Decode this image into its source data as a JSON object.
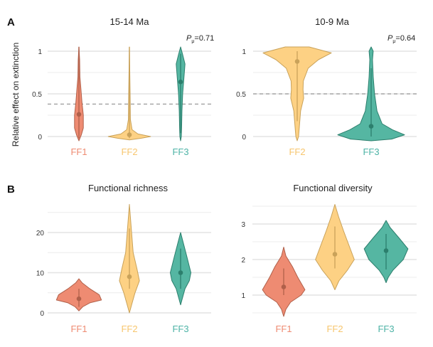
{
  "colors": {
    "FF1": "#EE8B72",
    "FF2": "#FDD184",
    "FF3": "#55B6A2",
    "FF1_stroke": "#B0604A",
    "FF2_stroke": "#C9A25A",
    "FF3_stroke": "#2C7F6D",
    "FF1_label": "#EE8B72",
    "FF2_label": "#F7C66E",
    "FF3_label": "#4DB3A6"
  },
  "panel_labels": {
    "A": "A",
    "B": "B"
  },
  "shared_ylabel": "Relative effect on extinction",
  "chart_data": [
    {
      "type": "violin",
      "panel": "A",
      "title": "15-14 Ma",
      "annotation": "P",
      "annotation_sub": "μ",
      "annotation_value": "=0.71",
      "ylim": [
        -0.05,
        1.05
      ],
      "yticks": [
        0,
        0.5,
        1
      ],
      "ytick_labels": [
        "0",
        "0.5",
        "1"
      ],
      "minor_grid": [
        0.25,
        0.75
      ],
      "reference_line": 0.38,
      "categories": [
        "FF1",
        "FF2",
        "FF3"
      ],
      "series": [
        {
          "name": "FF1",
          "median": 0.26,
          "interval": [
            -0.02,
            1.05
          ],
          "density": [
            [
              1.05,
              0
            ],
            [
              0.9,
              0.02
            ],
            [
              0.7,
              0.03
            ],
            [
              0.6,
              0.05
            ],
            [
              0.4,
              0.09
            ],
            [
              0.25,
              0.13
            ],
            [
              0.1,
              0.13
            ],
            [
              0.02,
              0.07
            ],
            [
              -0.05,
              0
            ]
          ]
        },
        {
          "name": "FF2",
          "median": 0.02,
          "interval": [
            -0.02,
            1.05
          ],
          "density": [
            [
              1.05,
              0
            ],
            [
              0.5,
              0.02
            ],
            [
              0.2,
              0.03
            ],
            [
              0.08,
              0.08
            ],
            [
              0.03,
              0.25
            ],
            [
              0.0,
              0.62
            ],
            [
              -0.02,
              0.35
            ],
            [
              -0.04,
              0
            ]
          ]
        },
        {
          "name": "FF3",
          "median": 0.64,
          "interval": [
            0.04,
            0.97
          ],
          "density": [
            [
              1.05,
              0
            ],
            [
              0.96,
              0.06
            ],
            [
              0.85,
              0.13
            ],
            [
              0.7,
              0.1
            ],
            [
              0.5,
              0.06
            ],
            [
              0.3,
              0.04
            ],
            [
              0.1,
              0.03
            ],
            [
              0.0,
              0.02
            ],
            [
              -0.05,
              0
            ]
          ]
        }
      ]
    },
    {
      "type": "violin",
      "panel": "A",
      "title": "10-9 Ma",
      "annotation": "P",
      "annotation_sub": "μ",
      "annotation_value": "=0.64",
      "ylim": [
        -0.05,
        1.05
      ],
      "yticks": [
        0,
        0.5,
        1
      ],
      "ytick_labels": [
        "0",
        "0.5",
        "1"
      ],
      "minor_grid": [
        0.25,
        0.75
      ],
      "reference_line": 0.5,
      "categories": [
        "FF2",
        "FF3"
      ],
      "series": [
        {
          "name": "FF2",
          "median": 0.88,
          "interval": [
            0.18,
            1.0
          ],
          "density": [
            [
              1.05,
              0.35
            ],
            [
              0.98,
              1.0
            ],
            [
              0.9,
              0.62
            ],
            [
              0.8,
              0.32
            ],
            [
              0.65,
              0.18
            ],
            [
              0.55,
              0.17
            ],
            [
              0.45,
              0.19
            ],
            [
              0.3,
              0.1
            ],
            [
              0.1,
              0.06
            ],
            [
              0.0,
              0.04
            ],
            [
              -0.05,
              0
            ]
          ]
        },
        {
          "name": "FF3",
          "median": 0.12,
          "interval": [
            0.0,
            0.8
          ],
          "density": [
            [
              1.05,
              0
            ],
            [
              1.0,
              0.06
            ],
            [
              0.9,
              0.04
            ],
            [
              0.7,
              0.06
            ],
            [
              0.5,
              0.1
            ],
            [
              0.3,
              0.17
            ],
            [
              0.15,
              0.32
            ],
            [
              0.08,
              0.62
            ],
            [
              0.02,
              0.98
            ],
            [
              -0.03,
              0.6
            ],
            [
              -0.05,
              0
            ]
          ]
        }
      ]
    },
    {
      "type": "violin",
      "panel": "B",
      "title": "Functional richness",
      "ylim": [
        -1,
        28
      ],
      "yticks": [
        0,
        10,
        20
      ],
      "ytick_labels": [
        "0",
        "10",
        "20"
      ],
      "minor_grid": [
        5,
        15,
        25
      ],
      "categories": [
        "FF1",
        "FF2",
        "FF3"
      ],
      "series": [
        {
          "name": "FF1",
          "median": 3.5,
          "interval": [
            1.5,
            6
          ],
          "density": [
            [
              8.5,
              0
            ],
            [
              7.5,
              0.1
            ],
            [
              6,
              0.35
            ],
            [
              4.5,
              0.65
            ],
            [
              3.2,
              0.72
            ],
            [
              2.5,
              0.35
            ],
            [
              1.5,
              0.12
            ],
            [
              0.5,
              0
            ]
          ]
        },
        {
          "name": "FF2",
          "median": 9,
          "interval": [
            6,
            21
          ],
          "density": [
            [
              27,
              0
            ],
            [
              20,
              0.07
            ],
            [
              15,
              0.12
            ],
            [
              11,
              0.24
            ],
            [
              8,
              0.32
            ],
            [
              5,
              0.18
            ],
            [
              2,
              0.07
            ],
            [
              0,
              0
            ]
          ]
        },
        {
          "name": "FF3",
          "median": 10,
          "interval": [
            6,
            16
          ],
          "density": [
            [
              20,
              0
            ],
            [
              17,
              0.1
            ],
            [
              14,
              0.2
            ],
            [
              10,
              0.33
            ],
            [
              8,
              0.28
            ],
            [
              6,
              0.14
            ],
            [
              4,
              0.07
            ],
            [
              2,
              0
            ]
          ]
        }
      ]
    },
    {
      "type": "violin",
      "panel": "B",
      "title": "Functional diversity",
      "ylim": [
        0.4,
        3.6
      ],
      "yticks": [
        1,
        2,
        3
      ],
      "ytick_labels": [
        "1",
        "2",
        "3"
      ],
      "minor_grid": [
        0.5,
        1.5,
        2.5,
        3.5
      ],
      "categories": [
        "FF1",
        "FF2",
        "FF3"
      ],
      "series": [
        {
          "name": "FF1",
          "median": 1.23,
          "interval": [
            1.0,
            1.75
          ],
          "density": [
            [
              2.35,
              0
            ],
            [
              2.1,
              0.07
            ],
            [
              1.8,
              0.28
            ],
            [
              1.5,
              0.45
            ],
            [
              1.15,
              0.68
            ],
            [
              1.0,
              0.56
            ],
            [
              0.8,
              0.22
            ],
            [
              0.6,
              0.07
            ],
            [
              0.4,
              0
            ]
          ]
        },
        {
          "name": "FF2",
          "median": 2.15,
          "interval": [
            1.75,
            2.93
          ],
          "density": [
            [
              3.55,
              0
            ],
            [
              3.2,
              0.12
            ],
            [
              2.8,
              0.28
            ],
            [
              2.4,
              0.45
            ],
            [
              2.0,
              0.62
            ],
            [
              1.7,
              0.4
            ],
            [
              1.4,
              0.13
            ],
            [
              1.15,
              0
            ]
          ]
        },
        {
          "name": "FF3",
          "median": 2.25,
          "interval": [
            1.72,
            2.72
          ],
          "density": [
            [
              3.1,
              0
            ],
            [
              2.9,
              0.13
            ],
            [
              2.6,
              0.42
            ],
            [
              2.3,
              0.7
            ],
            [
              2.0,
              0.55
            ],
            [
              1.7,
              0.22
            ],
            [
              1.5,
              0.07
            ],
            [
              1.35,
              0
            ]
          ]
        }
      ]
    }
  ]
}
